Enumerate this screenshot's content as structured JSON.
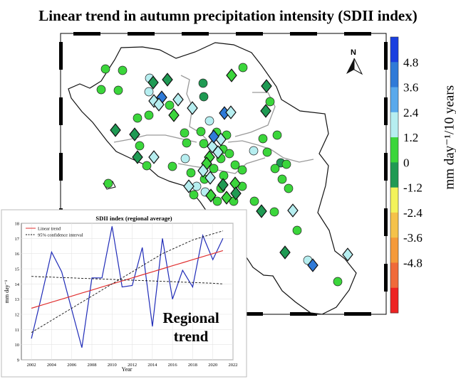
{
  "title": "Linear trend in autumn precipitation intensity (SDII index)",
  "north_label": "N",
  "colorbar": {
    "unit_label": "mm day⁻¹/10 years",
    "ticks": [
      "4.8",
      "3.6",
      "2.4",
      "1.2",
      "0",
      "-1.2",
      "-2.4",
      "-3.6",
      "-4.8"
    ],
    "colors": [
      "#1a3fe0",
      "#2f7ad8",
      "#59a9ec",
      "#b6eef0",
      "#3bd63b",
      "#1f9a53",
      "#f3f35a",
      "#f5c24a",
      "#f59a3a",
      "#f06a3a",
      "#ee2222"
    ]
  },
  "inset": {
    "title": "SDII index (regional average)",
    "xlabel": "Year",
    "ylabel": "mm day⁻¹",
    "legend": [
      "Linear trend",
      "95% confidence interval"
    ],
    "overlay_text": "Regional trend",
    "colors": {
      "series": "#1f2bb8",
      "trend": "#e03030",
      "ci": "#111111"
    }
  },
  "chart_data": {
    "type": "line",
    "title": "SDII index (regional average)",
    "xlabel": "Year",
    "ylabel": "mm day⁻¹",
    "xlim": [
      2001,
      2022
    ],
    "ylim": [
      9,
      18
    ],
    "x_ticks": [
      2002,
      2004,
      2006,
      2008,
      2010,
      2012,
      2014,
      2016,
      2018,
      2020,
      2022
    ],
    "y_ticks": [
      9,
      10,
      11,
      12,
      13,
      14,
      15,
      16,
      17,
      18
    ],
    "x": [
      2002,
      2003,
      2004,
      2005,
      2006,
      2007,
      2008,
      2009,
      2010,
      2011,
      2012,
      2013,
      2014,
      2015,
      2016,
      2017,
      2018,
      2019,
      2020,
      2021
    ],
    "series": [
      {
        "name": "SDII",
        "values": [
          10.4,
          13.2,
          16.1,
          14.8,
          12.3,
          9.8,
          14.4,
          14.4,
          17.8,
          13.8,
          13.9,
          16.4,
          11.2,
          17.0,
          13.0,
          14.9,
          13.8,
          17.2,
          15.6,
          17.0
        ]
      },
      {
        "name": "Linear trend",
        "values": [
          12.4,
          12.6,
          12.8,
          13.0,
          13.2,
          13.4,
          13.6,
          13.8,
          14.0,
          14.2,
          14.4,
          14.6,
          14.8,
          15.0,
          15.2,
          15.4,
          15.6,
          15.8,
          16.0,
          16.2
        ]
      },
      {
        "name": "95% confidence interval",
        "values": [
          14.5,
          14.47,
          14.45,
          14.42,
          14.4,
          14.37,
          14.35,
          14.32,
          14.3,
          14.27,
          14.25,
          14.22,
          14.2,
          14.17,
          14.15,
          14.12,
          14.1,
          14.07,
          14.05,
          14.0
        ]
      },
      {
        "name": "95% confidence interval (upper)",
        "values": [
          10.8,
          11.2,
          11.6,
          12.0,
          12.4,
          12.8,
          13.2,
          13.6,
          14.0,
          14.4,
          14.8,
          15.2,
          15.6,
          16.0,
          16.3,
          16.6,
          16.9,
          17.1,
          17.3,
          17.5
        ]
      }
    ]
  }
}
